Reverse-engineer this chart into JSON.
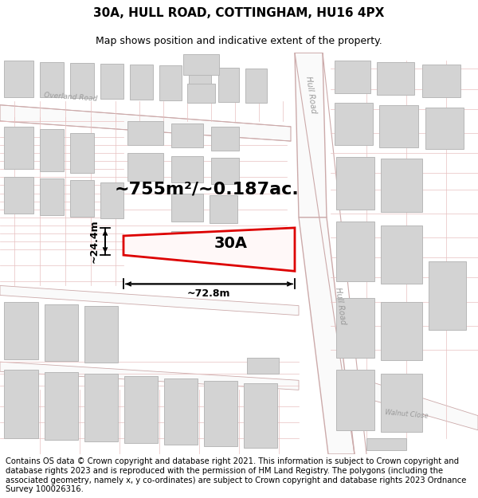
{
  "title": "30A, HULL ROAD, COTTINGHAM, HU16 4PX",
  "subtitle": "Map shows position and indicative extent of the property.",
  "area_label": "~755m²/~0.187ac.",
  "property_label": "30A",
  "width_label": "~72.8m",
  "height_label": "~24.4m",
  "footer_text": "Contains OS data © Crown copyright and database right 2021. This information is subject to Crown copyright and database rights 2023 and is reproduced with the permission of HM Land Registry. The polygons (including the associated geometry, namely x, y co-ordinates) are subject to Crown copyright and database rights 2023 Ordnance Survey 100026316.",
  "bg_color": "#ffffff",
  "building_fill": "#d3d3d3",
  "building_edge": "#b8b8b8",
  "property_color": "#dd0000",
  "road_line_color": "#e8c0c0",
  "road_dark": "#ccaaaa",
  "title_color": "#000000",
  "road_label_color": "#999999",
  "dim_color": "#000000",
  "title_fontsize": 11,
  "subtitle_fontsize": 9,
  "area_fontsize": 16,
  "property_label_fontsize": 14,
  "dim_fontsize": 9,
  "road_label_fontsize": 7,
  "footer_fontsize": 7.2
}
